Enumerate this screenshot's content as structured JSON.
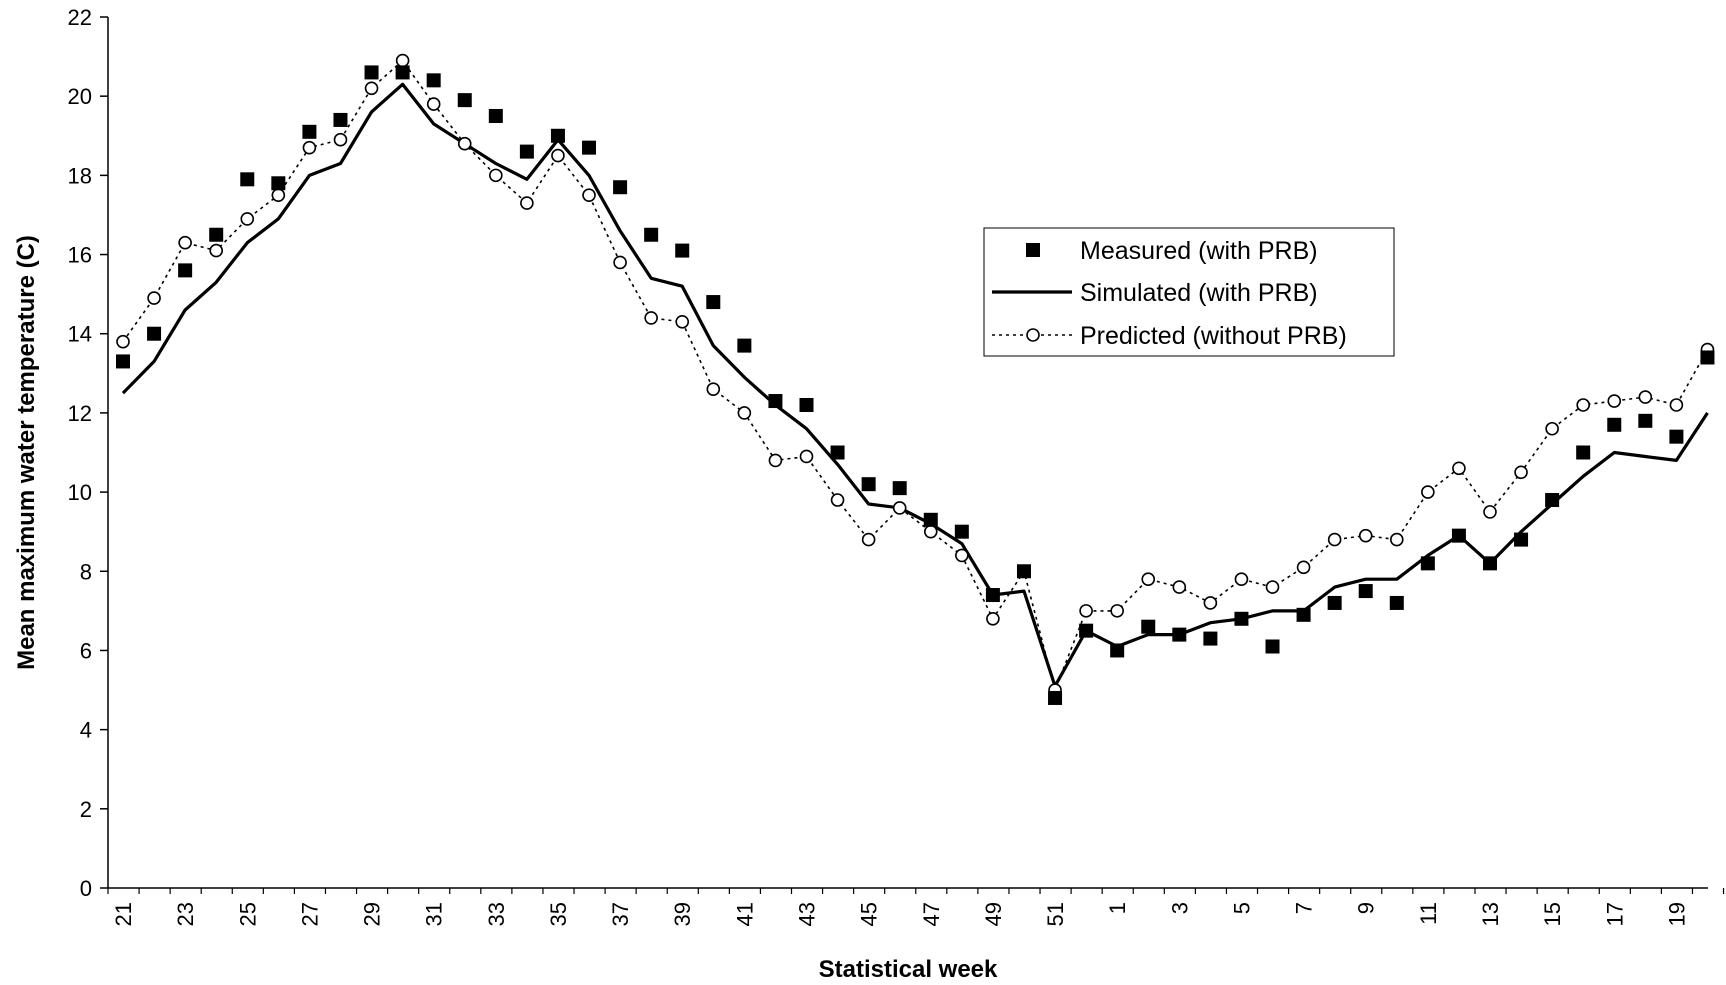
{
  "chart_data": {
    "type": "line",
    "title": "",
    "xlabel": "Statistical week",
    "ylabel": "Mean maximum water temperature (C)",
    "ylim": [
      0,
      22
    ],
    "yticks": [
      0,
      2,
      4,
      6,
      8,
      10,
      12,
      14,
      16,
      18,
      20,
      22
    ],
    "grid": false,
    "legend_position": "center-right",
    "categories": [
      "21",
      "22",
      "23",
      "24",
      "25",
      "26",
      "27",
      "28",
      "29",
      "30",
      "31",
      "32",
      "33",
      "34",
      "35",
      "36",
      "37",
      "38",
      "39",
      "40",
      "41",
      "42",
      "43",
      "44",
      "45",
      "46",
      "47",
      "48",
      "49",
      "50",
      "51",
      "52",
      "1",
      "2",
      "3",
      "4",
      "5",
      "6",
      "7",
      "8",
      "9",
      "10",
      "11",
      "12",
      "13",
      "14",
      "15",
      "16",
      "17",
      "18",
      "19",
      "20"
    ],
    "xtick_labels": [
      "21",
      "23",
      "25",
      "27",
      "29",
      "31",
      "33",
      "35",
      "37",
      "39",
      "41",
      "43",
      "45",
      "47",
      "49",
      "51",
      "1",
      "3",
      "5",
      "7",
      "9",
      "11",
      "13",
      "15",
      "17",
      "19"
    ],
    "series": [
      {
        "name": "Measured (with PRB)",
        "style": "square-markers",
        "color": "#000000",
        "values": [
          13.3,
          14.0,
          15.6,
          16.5,
          17.9,
          17.8,
          19.1,
          19.4,
          20.6,
          20.6,
          20.4,
          19.9,
          19.5,
          18.6,
          19.0,
          18.7,
          17.7,
          16.5,
          16.1,
          14.8,
          13.7,
          12.3,
          12.2,
          11.0,
          10.2,
          10.1,
          9.3,
          9.0,
          7.4,
          8.0,
          4.8,
          6.5,
          6.0,
          6.6,
          6.4,
          6.3,
          6.8,
          6.1,
          6.9,
          7.2,
          7.5,
          7.2,
          8.2,
          8.9,
          8.2,
          8.8,
          9.8,
          11.0,
          11.7,
          11.8,
          11.4,
          13.4
        ]
      },
      {
        "name": "Simulated (with PRB)",
        "style": "solid-line",
        "color": "#000000",
        "values": [
          12.5,
          13.3,
          14.6,
          15.3,
          16.3,
          16.9,
          18.0,
          18.3,
          19.6,
          20.3,
          19.3,
          18.8,
          18.3,
          17.9,
          18.9,
          18.0,
          16.6,
          15.4,
          15.2,
          13.7,
          12.9,
          12.2,
          11.6,
          10.7,
          9.7,
          9.6,
          9.2,
          8.7,
          7.4,
          7.5,
          5.1,
          6.5,
          6.1,
          6.4,
          6.4,
          6.7,
          6.8,
          7.0,
          7.0,
          7.6,
          7.8,
          7.8,
          8.4,
          8.9,
          8.2,
          9.0,
          9.7,
          10.4,
          11.0,
          10.9,
          10.8,
          12.0
        ]
      },
      {
        "name": "Predicted (without PRB)",
        "style": "dotted-line-open-circles",
        "color": "#000000",
        "values": [
          13.8,
          14.9,
          16.3,
          16.1,
          16.9,
          17.5,
          18.7,
          18.9,
          20.2,
          20.9,
          19.8,
          18.8,
          18.0,
          17.3,
          18.5,
          17.5,
          15.8,
          14.4,
          14.3,
          12.6,
          12.0,
          10.8,
          10.9,
          9.8,
          8.8,
          9.6,
          9.0,
          8.4,
          6.8,
          8.0,
          5.0,
          7.0,
          7.0,
          7.8,
          7.6,
          7.2,
          7.8,
          7.6,
          8.1,
          8.8,
          8.9,
          8.8,
          10.0,
          10.6,
          9.5,
          10.5,
          11.6,
          12.2,
          12.3,
          12.4,
          12.2,
          13.6
        ]
      }
    ]
  }
}
